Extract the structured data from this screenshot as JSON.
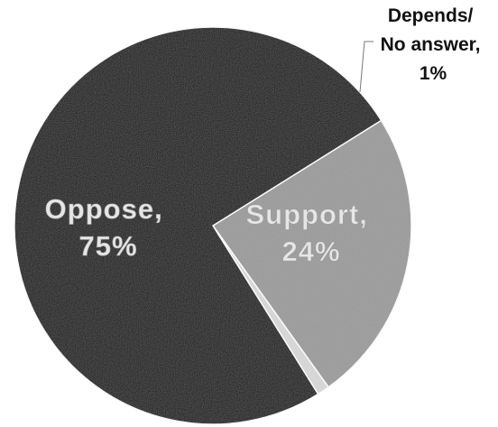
{
  "chart_data": {
    "type": "pie",
    "slices": [
      {
        "label_line1": "Support,",
        "label_line2": "24%",
        "value": 24,
        "color": "#9b9b9b"
      },
      {
        "label_line1": "Depends/",
        "label_line2": "No answer,",
        "label_line3": "1%",
        "value": 1,
        "color": "#d9d9d9"
      },
      {
        "label_line1": "Oppose,",
        "label_line2": "75%",
        "value": 75,
        "color": "#141414"
      }
    ]
  }
}
